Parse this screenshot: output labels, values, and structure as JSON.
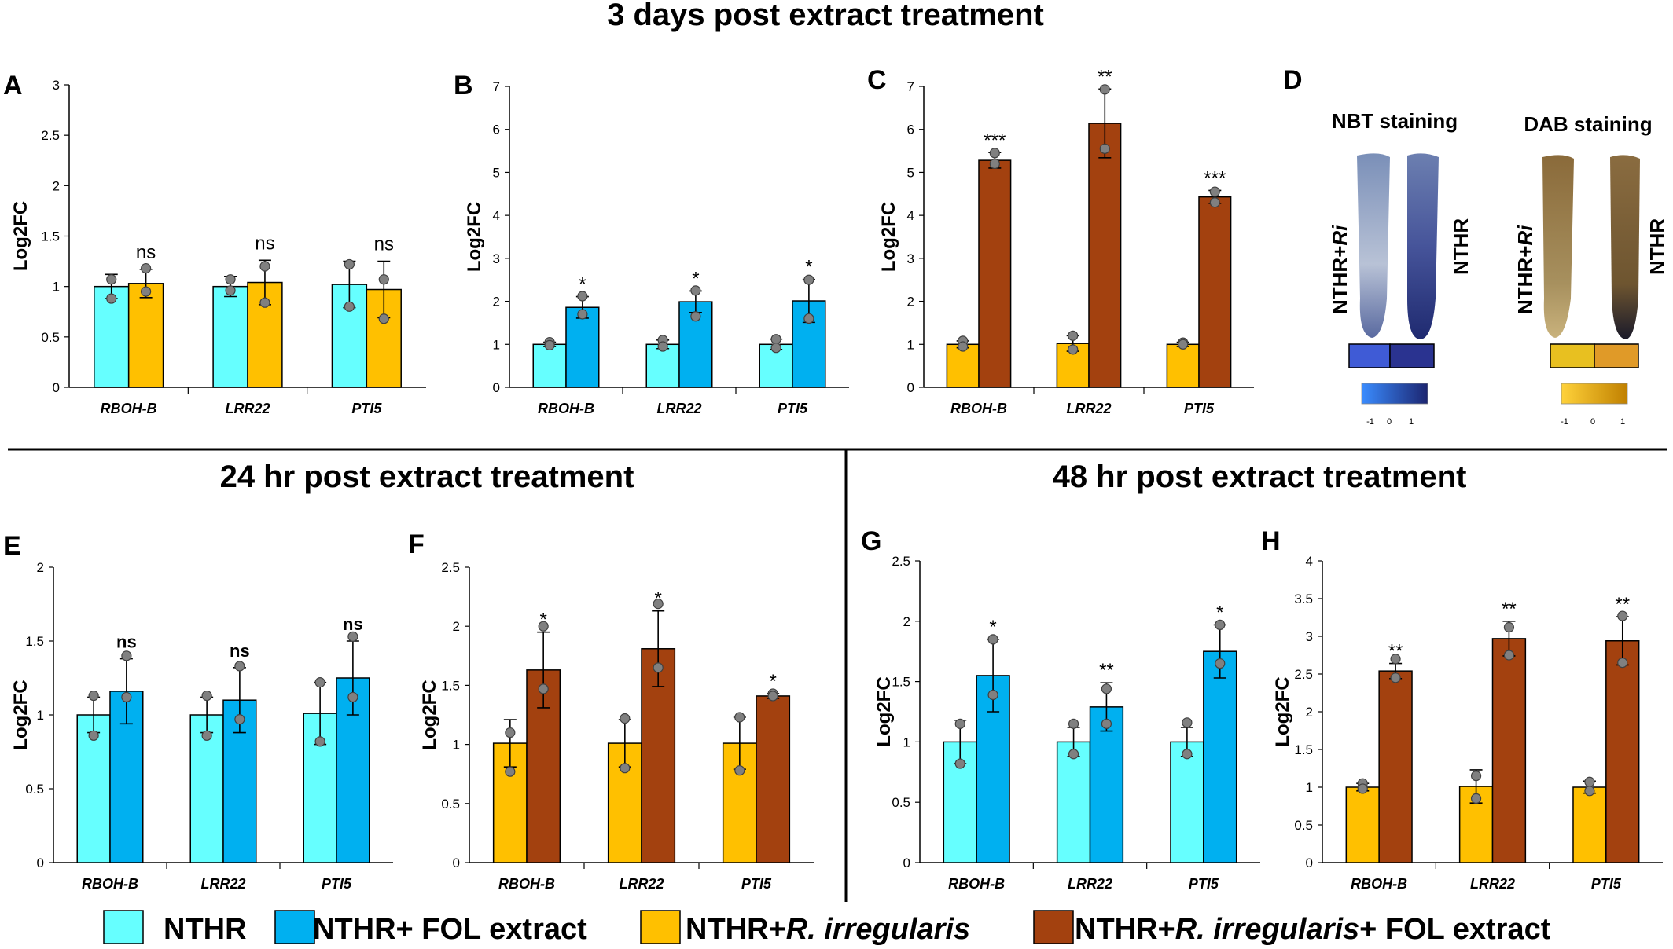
{
  "sections": {
    "top": "3 days post extract treatment",
    "bottom_left": "24 hr post extract treatment",
    "bottom_right": "48 hr post extract treatment"
  },
  "colors": {
    "NTHR": "#66ffff",
    "NTHR_FOL": "#00b0f0",
    "NTHR_Ri": "#ffc000",
    "NTHR_Ri_FOL": "#a3410f",
    "point": "#808080"
  },
  "legend": [
    {
      "key": "NTHR",
      "parts": [
        {
          "t": "NTHR",
          "i": false
        }
      ]
    },
    {
      "key": "NTHR_FOL",
      "parts": [
        {
          "t": "NTHR+ FOL extract",
          "i": false
        }
      ]
    },
    {
      "key": "NTHR_Ri",
      "parts": [
        {
          "t": "NTHR+",
          "i": false
        },
        {
          "t": "R. irregularis",
          "i": true
        }
      ]
    },
    {
      "key": "NTHR_Ri_FOL",
      "parts": [
        {
          "t": "NTHR+",
          "i": false
        },
        {
          "t": "R. irregularis",
          "i": true
        },
        {
          "t": "+ FOL extract",
          "i": false
        }
      ]
    }
  ],
  "staining": {
    "letter": "D",
    "nbt_title": "NBT staining",
    "dab_title": "DAB staining",
    "label_treated_main": "NTHR+",
    "label_treated_italic": "Ri",
    "label_control": "NTHR",
    "scale_ticks": [
      "-1",
      "0",
      "1"
    ]
  },
  "chart_data": [
    {
      "panel": "A",
      "type": "bar",
      "ylabel": "Log2FC",
      "ylim": [
        0,
        3
      ],
      "yticks": [
        "0",
        "0.5",
        "1",
        "1.5",
        "2",
        "2.5",
        "3"
      ],
      "categories": [
        "RBOH-B",
        "LRR22",
        "PTI5"
      ],
      "series": [
        {
          "key": "NTHR",
          "values": [
            1.0,
            1.0,
            1.02
          ],
          "err": [
            0.12,
            0.1,
            0.23
          ],
          "points": [
            [
              1.07,
              0.88
            ],
            [
              1.07,
              0.96
            ],
            [
              1.22,
              0.8
            ]
          ]
        },
        {
          "key": "NTHR_Ri",
          "values": [
            1.03,
            1.04,
            0.97
          ],
          "err": [
            0.14,
            0.22,
            0.28
          ],
          "points": [
            [
              1.18,
              0.95
            ],
            [
              1.2,
              0.84
            ],
            [
              1.07,
              0.68
            ]
          ]
        }
      ],
      "sig": [
        "ns",
        "ns",
        "ns"
      ]
    },
    {
      "panel": "B",
      "type": "bar",
      "ylabel": "Log2FC",
      "ylim": [
        0,
        7
      ],
      "yticks": [
        "0",
        "1",
        "2",
        "3",
        "4",
        "5",
        "6",
        "7"
      ],
      "categories": [
        "RBOH-B",
        "LRR22",
        "PTI5"
      ],
      "series": [
        {
          "key": "NTHR",
          "values": [
            1.0,
            1.0,
            1.0
          ],
          "err": [
            0.05,
            0.1,
            0.12
          ],
          "points": [
            [
              1.05,
              0.98
            ],
            [
              1.1,
              0.95
            ],
            [
              1.12,
              0.92
            ]
          ]
        },
        {
          "key": "NTHR_FOL",
          "values": [
            1.86,
            1.99,
            2.01
          ],
          "err": [
            0.25,
            0.25,
            0.5
          ],
          "points": [
            [
              2.12,
              1.7
            ],
            [
              2.25,
              1.65
            ],
            [
              2.5,
              1.6
            ]
          ]
        }
      ],
      "sig": [
        "*",
        "*",
        "*"
      ]
    },
    {
      "panel": "C",
      "type": "bar",
      "ylabel": "Log2FC",
      "ylim": [
        0,
        7
      ],
      "yticks": [
        "0",
        "1",
        "2",
        "3",
        "4",
        "5",
        "6",
        "7"
      ],
      "categories": [
        "RBOH-B",
        "LRR22",
        "PTI5"
      ],
      "series": [
        {
          "key": "NTHR_Ri",
          "values": [
            1.0,
            1.02,
            1.0
          ],
          "err": [
            0.08,
            0.18,
            0.05
          ],
          "points": [
            [
              1.08,
              0.95
            ],
            [
              1.2,
              0.88
            ],
            [
              1.04,
              1.0
            ]
          ]
        },
        {
          "key": "NTHR_Ri_FOL",
          "values": [
            5.28,
            6.14,
            4.43
          ],
          "err": [
            0.18,
            0.8,
            0.15
          ],
          "points": [
            [
              5.45,
              5.2
            ],
            [
              6.93,
              5.55
            ],
            [
              4.55,
              4.3
            ]
          ]
        }
      ],
      "sig": [
        "***",
        "**",
        "***"
      ]
    },
    {
      "panel": "E",
      "type": "bar",
      "ylabel": "Log2FC",
      "ylim": [
        0,
        2
      ],
      "yticks": [
        "0",
        "0.5",
        "1",
        "1.5",
        "2"
      ],
      "categories": [
        "RBOH-B",
        "LRR22",
        "PTI5"
      ],
      "series": [
        {
          "key": "NTHR",
          "values": [
            1.0,
            1.0,
            1.01
          ],
          "err": [
            0.12,
            0.12,
            0.21
          ],
          "points": [
            [
              1.13,
              0.86
            ],
            [
              1.13,
              0.86
            ],
            [
              1.22,
              0.82
            ]
          ]
        },
        {
          "key": "NTHR_FOL",
          "values": [
            1.16,
            1.1,
            1.25
          ],
          "err": [
            0.22,
            0.22,
            0.25
          ],
          "points": [
            [
              1.4,
              1.12
            ],
            [
              1.33,
              0.97
            ],
            [
              1.53,
              1.12
            ]
          ]
        }
      ],
      "sig": [
        "ns",
        "ns",
        "ns"
      ]
    },
    {
      "panel": "F",
      "type": "bar",
      "ylabel": "Log2FC",
      "ylim": [
        0,
        2.5
      ],
      "yticks": [
        "0",
        "0.5",
        "1",
        "1.5",
        "2",
        "2.5"
      ],
      "categories": [
        "RBOH-B",
        "LRR22",
        "PTI5"
      ],
      "series": [
        {
          "key": "NTHR_Ri",
          "values": [
            1.01,
            1.01,
            1.01
          ],
          "err": [
            0.2,
            0.2,
            0.22
          ],
          "points": [
            [
              1.1,
              0.77
            ],
            [
              1.22,
              0.8
            ],
            [
              1.23,
              0.78
            ]
          ]
        },
        {
          "key": "NTHR_Ri_FOL",
          "values": [
            1.63,
            1.81,
            1.41
          ],
          "err": [
            0.32,
            0.32,
            0.02
          ],
          "points": [
            [
              2.0,
              1.47
            ],
            [
              2.19,
              1.65
            ],
            [
              1.43,
              1.41
            ]
          ]
        }
      ],
      "sig": [
        "*",
        "*",
        "*"
      ]
    },
    {
      "panel": "G",
      "type": "bar",
      "ylabel": "Log2FC",
      "ylim": [
        0,
        2.5
      ],
      "yticks": [
        "0",
        "0.5",
        "1",
        "1.5",
        "2",
        "2.5"
      ],
      "categories": [
        "RBOH-B",
        "LRR22",
        "PTI5"
      ],
      "series": [
        {
          "key": "NTHR",
          "values": [
            1.0,
            1.0,
            1.0
          ],
          "err": [
            0.18,
            0.12,
            0.12
          ],
          "points": [
            [
              1.15,
              0.82
            ],
            [
              1.15,
              0.9
            ],
            [
              1.16,
              0.9
            ]
          ]
        },
        {
          "key": "NTHR_FOL",
          "values": [
            1.55,
            1.29,
            1.75
          ],
          "err": [
            0.3,
            0.2,
            0.22
          ],
          "points": [
            [
              1.85,
              1.39
            ],
            [
              1.44,
              1.15
            ],
            [
              1.97,
              1.65
            ]
          ]
        }
      ],
      "sig": [
        "*",
        "**",
        "*"
      ]
    },
    {
      "panel": "H",
      "type": "bar",
      "ylabel": "Log2FC",
      "ylim": [
        0,
        4
      ],
      "yticks": [
        "0",
        "0.5",
        "1",
        "1.5",
        "2",
        "2.5",
        "3",
        "3.5",
        "4"
      ],
      "categories": [
        "RBOH-B",
        "LRR22",
        "PTI5"
      ],
      "series": [
        {
          "key": "NTHR_Ri",
          "values": [
            1.0,
            1.01,
            1.0
          ],
          "err": [
            0.05,
            0.22,
            0.08
          ],
          "points": [
            [
              1.05,
              0.98
            ],
            [
              1.15,
              0.85
            ],
            [
              1.07,
              0.95
            ]
          ]
        },
        {
          "key": "NTHR_Ri_FOL",
          "values": [
            2.54,
            2.97,
            2.94
          ],
          "err": [
            0.1,
            0.23,
            0.32
          ],
          "points": [
            [
              2.7,
              2.45
            ],
            [
              3.12,
              2.75
            ],
            [
              3.27,
              2.65
            ]
          ]
        }
      ],
      "sig": [
        "**",
        "**",
        "**"
      ]
    }
  ]
}
